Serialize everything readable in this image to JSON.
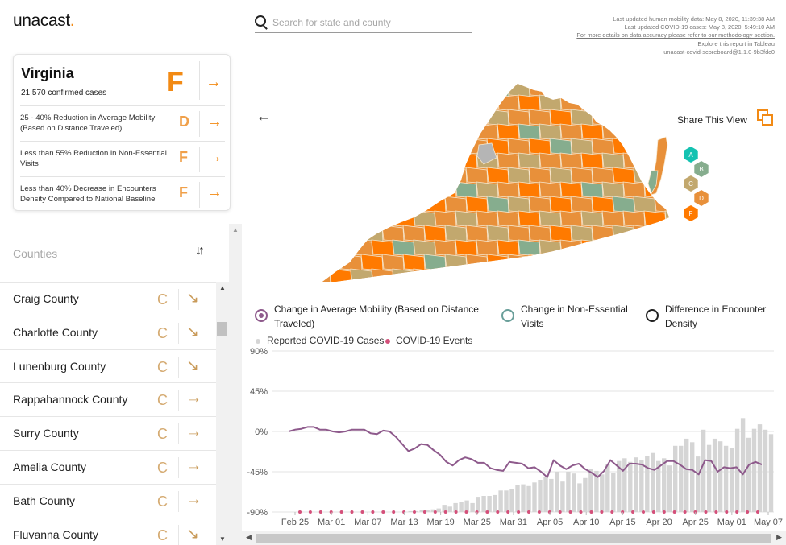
{
  "header": {
    "logo_text": "unacast",
    "logo_dot": ".",
    "search_placeholder": "Search for state and county",
    "meta": {
      "mobility_updated": "Last updated human mobility data: May 8, 2020, 11:39:38 AM",
      "covid_updated": "Last updated COVID-19 cases: May 8, 2020, 5:49:10 AM",
      "methodology_link": "For more details on data accuracy please refer to our methodology section.",
      "tableau_link": "Explore this report in Tableau",
      "version": "unacast-covid-scoreboard@1.1.0-9b3fdc0"
    }
  },
  "state_card": {
    "name": "Virginia",
    "cases": "21,570 confirmed cases",
    "overall_grade": "F",
    "metrics": [
      {
        "label": "25 - 40% Reduction in Average Mobility (Based on Distance Traveled)",
        "grade": "D"
      },
      {
        "label": "Less than 55% Reduction in Non-Essential Visits",
        "grade": "F"
      },
      {
        "label": "Less than 40% Decrease in Encounters Density Compared to National Baseline",
        "grade": "F"
      }
    ]
  },
  "counties": {
    "title": "Counties",
    "items": [
      {
        "name": "Craig County",
        "grade": "C",
        "trend": "↘"
      },
      {
        "name": "Charlotte County",
        "grade": "C",
        "trend": "↘"
      },
      {
        "name": "Lunenburg County",
        "grade": "C",
        "trend": "↘"
      },
      {
        "name": "Rappahannock County",
        "grade": "C",
        "trend": "→"
      },
      {
        "name": "Surry County",
        "grade": "C",
        "trend": "→"
      },
      {
        "name": "Amelia County",
        "grade": "C",
        "trend": "→"
      },
      {
        "name": "Bath County",
        "grade": "C",
        "trend": "→"
      },
      {
        "name": "Fluvanna County",
        "grade": "C",
        "trend": "↘"
      }
    ]
  },
  "map": {
    "share_label": "Share This View",
    "grades": [
      "A",
      "B",
      "C",
      "D",
      "F"
    ],
    "colors": {
      "A": "#14c2b1",
      "B": "#86ad8e",
      "C": "#c2a86e",
      "D": "#e8903a",
      "F": "#ff7a00",
      "no_data": "#b5b5b5"
    }
  },
  "legend": {
    "metrics": [
      {
        "label": "Change in Average Mobility (Based on Distance Traveled)",
        "color": "#8e5a8c",
        "selected": true
      },
      {
        "label": "Change in Non-Essential Visits",
        "color": "#6a9f9a",
        "selected": false
      },
      {
        "label": "Difference in Encounter Density",
        "color": "#222222",
        "selected": false
      }
    ],
    "cases_label": "Reported COVID-19 Cases",
    "events_label": "COVID-19 Events",
    "cases_color": "#d5d5d5",
    "events_color": "#d4507a"
  },
  "chart_data": {
    "type": "line",
    "y_ticks": [
      "90%",
      "45%",
      "0%",
      "-45%",
      "-90%"
    ],
    "ylim": [
      -90,
      90
    ],
    "x_tick_labels": [
      "Feb 25",
      "Mar 01",
      "Mar 07",
      "Mar 13",
      "Mar 19",
      "Mar 25",
      "Mar 31",
      "Apr 05",
      "Apr 10",
      "Apr 15",
      "Apr 20",
      "Apr 25",
      "May 01",
      "May 07"
    ],
    "series": [
      {
        "name": "Change in Average Mobility (Based on Distance Traveled)",
        "color": "#8e5a8c",
        "values": [
          0,
          2,
          3,
          5,
          5,
          2,
          2,
          0,
          -1,
          0,
          2,
          2,
          2,
          -2,
          -3,
          1,
          0,
          -6,
          -14,
          -22,
          -19,
          -14,
          -15,
          -21,
          -26,
          -34,
          -38,
          -32,
          -29,
          -31,
          -35,
          -35,
          -41,
          -43,
          -44,
          -34,
          -35,
          -36,
          -41,
          -40,
          -45,
          -51,
          -32,
          -38,
          -42,
          -38,
          -36,
          -42,
          -46,
          -51,
          -44,
          -32,
          -38,
          -44,
          -36,
          -36,
          -37,
          -41,
          -43,
          -38,
          -33,
          -33,
          -37,
          -42,
          -43,
          -48,
          -32,
          -33,
          -45,
          -40,
          -41,
          -40,
          -48,
          -37,
          -34,
          -37
        ]
      },
      {
        "name": "Reported COVID-19 Cases",
        "color": "#d5d5d5",
        "values": [
          0,
          0,
          0,
          0,
          0,
          0,
          0,
          0,
          0,
          0,
          0,
          0,
          0,
          0,
          0,
          0,
          0,
          0,
          0,
          0,
          0,
          0,
          0,
          0,
          1,
          1,
          2,
          2,
          3,
          4,
          8,
          6,
          10,
          11,
          13,
          10,
          17,
          18,
          18,
          19,
          24,
          24,
          26,
          30,
          31,
          29,
          33,
          36,
          39,
          37,
          45,
          34,
          45,
          43,
          32,
          38,
          48,
          46,
          42,
          53,
          44,
          57,
          60,
          56,
          61,
          58,
          63,
          66,
          57,
          60,
          52,
          74,
          74,
          82,
          78,
          62,
          92,
          75,
          82,
          79,
          74,
          72,
          93,
          105,
          83,
          93,
          98,
          92,
          87
        ]
      }
    ],
    "event_points": 45
  }
}
